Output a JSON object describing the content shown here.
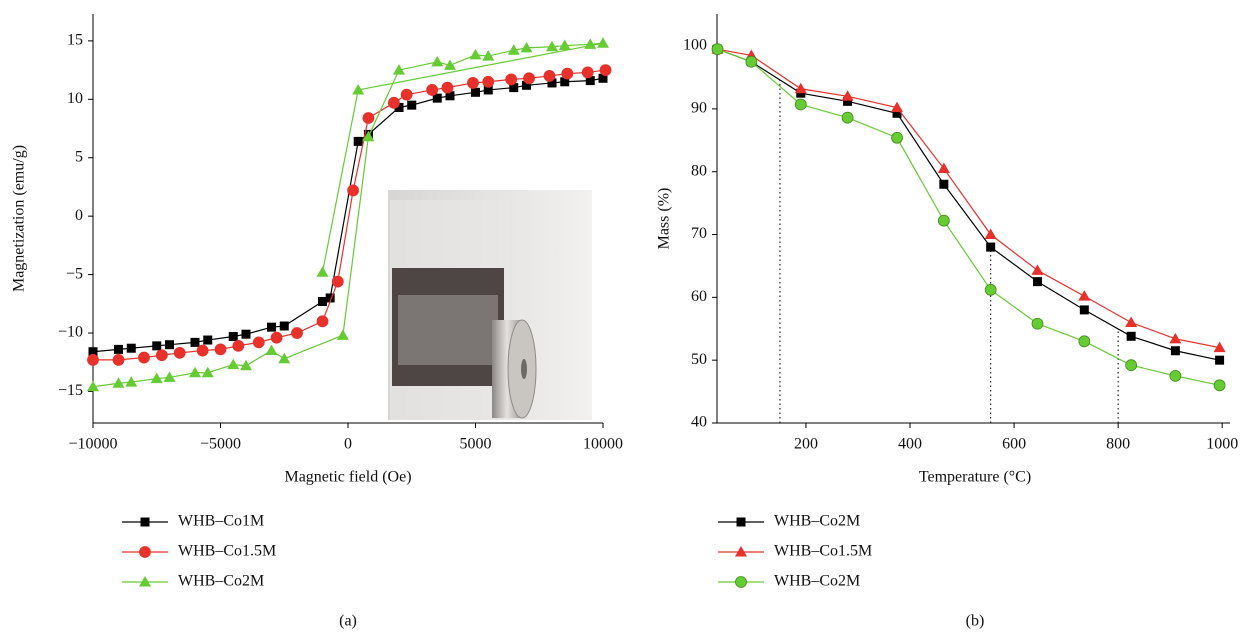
{
  "chart_data": [
    {
      "type": "line",
      "label": "(a)",
      "x_label": "Magnetic field (Oe)",
      "y_label": "Magnetization (emu/g)",
      "xlim": [
        -10000,
        10000
      ],
      "ylim": [
        -17.7,
        17.3
      ],
      "xticks": [
        {
          "value": -10000,
          "label": "−10000"
        },
        {
          "value": -5000,
          "label": "−5000"
        },
        0,
        5000,
        10000
      ],
      "yticks": [
        {
          "value": -15,
          "label": "−15"
        },
        {
          "value": -10,
          "label": "−10"
        },
        {
          "value": -5,
          "label": "−5"
        },
        0,
        5,
        10,
        15
      ],
      "series": [
        {
          "name": "WHB–Co1M",
          "color": "#000000",
          "marker": "square",
          "x": [
            -10000,
            -9000,
            -8500,
            -7500,
            -7000,
            -6000,
            -5500,
            -4500,
            -4000,
            -3000,
            -2500,
            -1000,
            -700,
            400,
            800,
            2000,
            2500,
            3500,
            4000,
            5000,
            5500,
            6500,
            7000,
            8000,
            8500,
            9500,
            10000
          ],
          "values": [
            -11.6,
            -11.4,
            -11.3,
            -11.1,
            -11.0,
            -10.8,
            -10.6,
            -10.3,
            -10.1,
            -9.5,
            -9.4,
            -7.3,
            -7.0,
            6.4,
            7.0,
            9.3,
            9.5,
            10.1,
            10.3,
            10.6,
            10.8,
            11.0,
            11.2,
            11.4,
            11.5,
            11.6,
            11.8
          ]
        },
        {
          "name": "WHB–Co1.5M",
          "color": "#e8312a",
          "marker": "circle",
          "x": [
            -10000,
            -9000,
            -8000,
            -7300,
            -6600,
            -5700,
            -5000,
            -4300,
            -3500,
            -2800,
            -2000,
            -1000,
            -400,
            200,
            800,
            1800,
            2300,
            3300,
            3900,
            4900,
            5500,
            6400,
            7100,
            7900,
            8600,
            9400,
            10100
          ],
          "values": [
            -12.3,
            -12.3,
            -12.1,
            -11.9,
            -11.7,
            -11.5,
            -11.4,
            -11.1,
            -10.8,
            -10.4,
            -10.0,
            -9.0,
            -5.6,
            2.2,
            8.4,
            9.7,
            10.4,
            10.8,
            11.0,
            11.4,
            11.5,
            11.7,
            11.8,
            12.0,
            12.2,
            12.3,
            12.5
          ]
        },
        {
          "name": "WHB–Co2M",
          "color": "#66cc33",
          "marker": "triangle",
          "x": [
            -10000,
            -9000,
            -8500,
            -7500,
            -7000,
            -6000,
            -5500,
            -4500,
            -4000,
            -3000,
            -2500,
            -200,
            800,
            2000,
            3500,
            4000,
            5000,
            5500,
            6500,
            7000,
            8000,
            8500,
            9500,
            10000,
            400,
            -1000
          ],
          "values": [
            -14.6,
            -14.3,
            -14.2,
            -13.9,
            -13.8,
            -13.4,
            -13.4,
            -12.7,
            -12.8,
            -11.5,
            -12.2,
            -10.2,
            6.8,
            12.5,
            13.2,
            12.9,
            13.8,
            13.7,
            14.2,
            14.4,
            14.5,
            14.6,
            14.7,
            14.8,
            10.8,
            -4.8
          ]
        }
      ]
    },
    {
      "type": "line",
      "label": "(b)",
      "x_label": "Temperature (°C)",
      "y_label": "Mass (%)",
      "xlim": [
        29,
        1015
      ],
      "ylim": [
        40,
        105.1
      ],
      "xticks": [
        200,
        400,
        600,
        800,
        1000
      ],
      "yticks": [
        40,
        50,
        60,
        70,
        80,
        90,
        100
      ],
      "reference_x": [
        150,
        555,
        800
      ],
      "series": [
        {
          "name": "WHB–Co2M",
          "color": "#000000",
          "marker": "square",
          "x": [
            30,
            95,
            190,
            280,
            375,
            465,
            555,
            645,
            735,
            825,
            910,
            995
          ],
          "values": [
            99.5,
            97.5,
            92.5,
            91.2,
            89.3,
            78,
            68,
            62.5,
            58,
            53.8,
            51.5,
            50
          ]
        },
        {
          "name": "WHB–Co1.5M",
          "color": "#e8312a",
          "marker": "triangle",
          "x": [
            30,
            95,
            190,
            280,
            375,
            465,
            555,
            645,
            735,
            825,
            910,
            995
          ],
          "values": [
            99.5,
            98.5,
            93.2,
            92,
            90.2,
            80.5,
            70,
            64.3,
            60.2,
            56,
            53.4,
            52
          ]
        },
        {
          "name": "WHB–Co2M",
          "color": "#66cc33",
          "marker": "circle",
          "x": [
            30,
            95,
            190,
            280,
            375,
            465,
            555,
            645,
            735,
            825,
            910,
            995
          ],
          "values": [
            99.5,
            97.5,
            90.7,
            88.6,
            85.4,
            72.2,
            61.2,
            55.8,
            53,
            49.2,
            47.5,
            46
          ]
        }
      ]
    }
  ]
}
